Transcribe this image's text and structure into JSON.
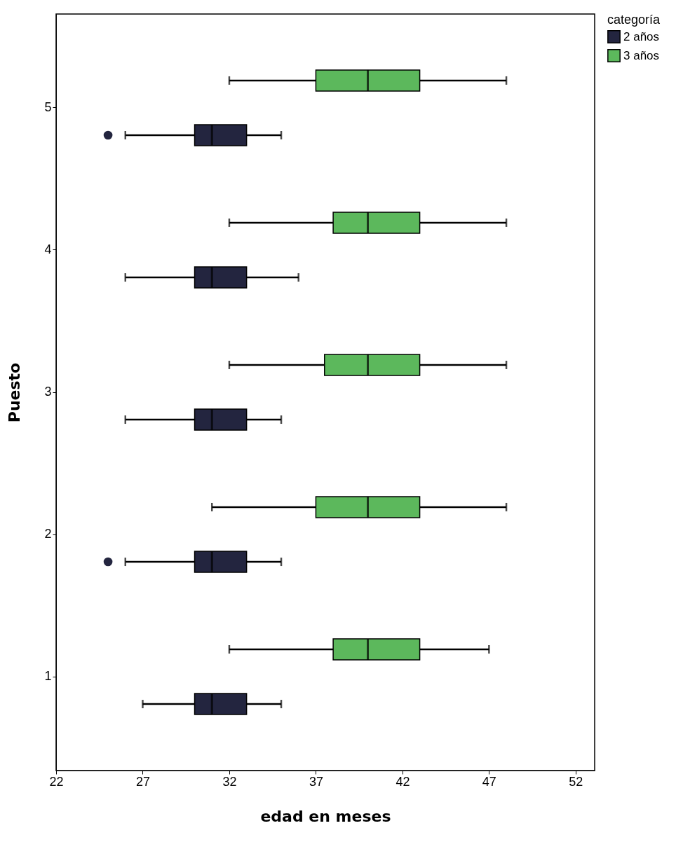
{
  "chart_data": {
    "type": "box",
    "orientation": "horizontal",
    "xlabel": "edad en meses",
    "ylabel": "Puesto",
    "legend_title": "categoría",
    "legend": "top right",
    "grid": false,
    "categories": [
      "5",
      "4",
      "3",
      "2",
      "1"
    ],
    "xlim": [
      22,
      53.1
    ],
    "xticks": [
      22,
      27,
      32,
      37,
      42,
      47,
      52
    ],
    "series": [
      {
        "name": "2 años",
        "color": "#23253f",
        "boxes": [
          {
            "low": 26,
            "q1": 30,
            "median": 31,
            "q3": 33,
            "high": 35,
            "outliers": [
              25
            ]
          },
          {
            "low": 26,
            "q1": 30,
            "median": 31,
            "q3": 33,
            "high": 36
          },
          {
            "low": 26,
            "q1": 30,
            "median": 31,
            "q3": 33,
            "high": 35
          },
          {
            "low": 26,
            "q1": 30,
            "median": 31,
            "q3": 33,
            "high": 35,
            "outliers": [
              25
            ]
          },
          {
            "low": 27,
            "q1": 30,
            "median": 31,
            "q3": 33,
            "high": 35
          }
        ]
      },
      {
        "name": "3 años",
        "color": "#5cb85c",
        "boxes": [
          {
            "low": 32,
            "q1": 37,
            "median": 40,
            "q3": 43,
            "high": 48
          },
          {
            "low": 32,
            "q1": 38,
            "median": 40,
            "q3": 43,
            "high": 48
          },
          {
            "low": 32,
            "q1": 37.5,
            "median": 40,
            "q3": 43,
            "high": 48
          },
          {
            "low": 31,
            "q1": 37,
            "median": 40,
            "q3": 43,
            "high": 48
          },
          {
            "low": 32,
            "q1": 38,
            "median": 40,
            "q3": 43,
            "high": 47
          }
        ]
      }
    ]
  }
}
